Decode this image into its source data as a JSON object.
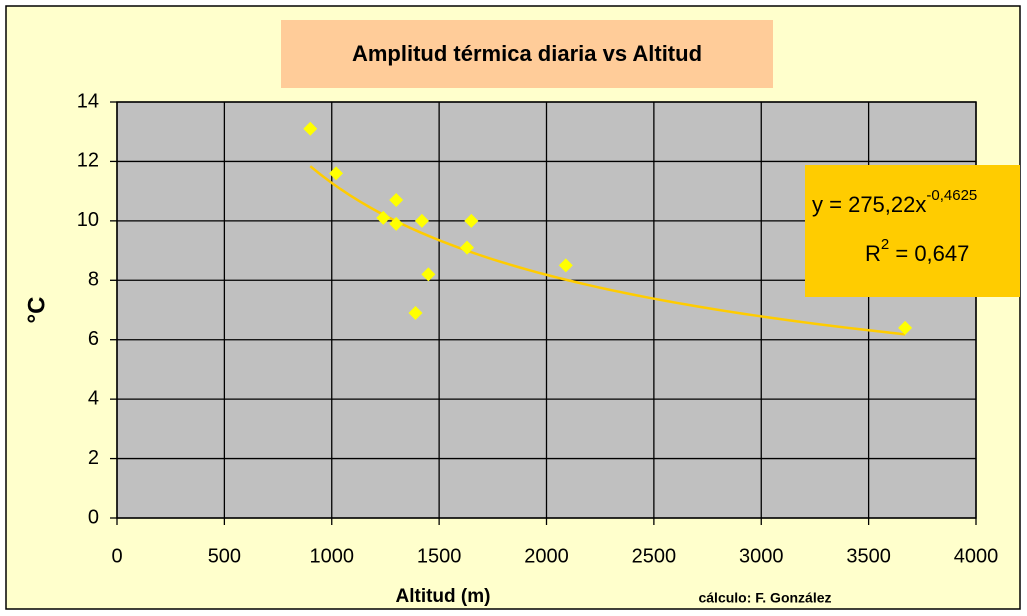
{
  "chart_data": {
    "type": "scatter",
    "title": "Amplitud térmica diaria vs Altitud",
    "x_label": "Altitud (m)",
    "y_label": "°C",
    "credit": "cálculo: F. González",
    "series": [
      {
        "color": "#ffff00",
        "x": [
          900,
          1020,
          1300,
          1300,
          1240,
          1420,
          1650,
          1630,
          1450,
          1390,
          2090,
          3670
        ],
        "values": [
          13.1,
          11.6,
          10.7,
          9.9,
          10.1,
          10.0,
          10.0,
          9.1,
          8.2,
          6.9,
          8.5,
          6.4
        ]
      }
    ],
    "trendline": {
      "color": "#ffcc00",
      "y_symbol": "y = ",
      "coefficient": {
        "value": 275.22,
        "label": "275,22"
      },
      "x_symbol": "x",
      "exponent": {
        "value": -0.4625,
        "label": "-0,4625"
      },
      "r2_symbol": "R",
      "r2_superscript": "2",
      "equals": " = ",
      "r_squared": {
        "value": 0.647,
        "label": "0,647"
      }
    },
    "xlim": [
      0,
      4000
    ],
    "xticks": [
      0,
      500,
      1000,
      1500,
      2000,
      2500,
      3000,
      3500,
      4000
    ],
    "ylim": [
      0,
      14
    ],
    "yticks": [
      0,
      2,
      4,
      6,
      8,
      10,
      12,
      14
    ],
    "grid": true
  }
}
